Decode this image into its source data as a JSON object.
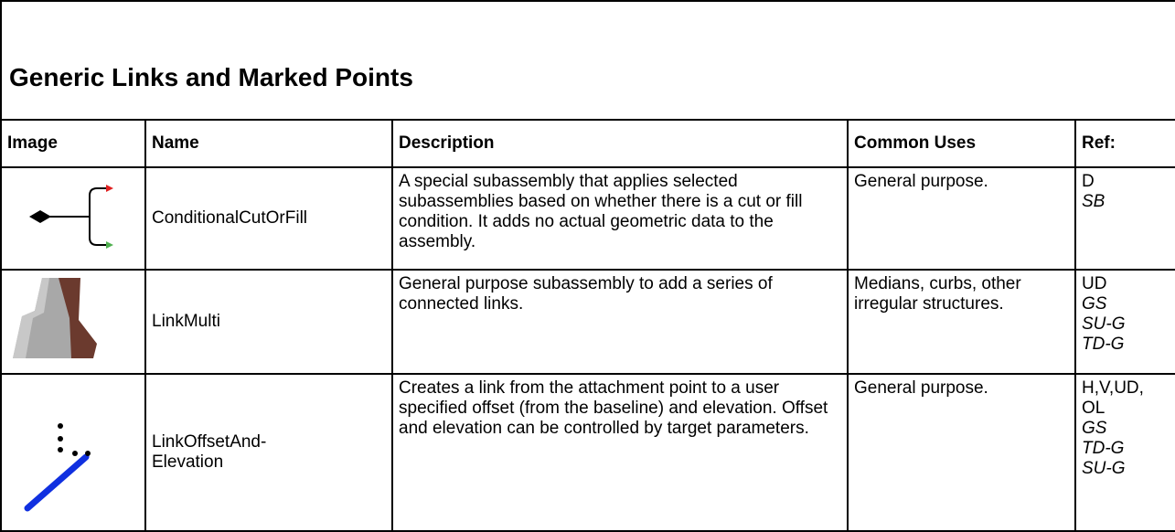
{
  "header": {
    "title": "Generic Links and Marked Points"
  },
  "table": {
    "columns": [
      "Image",
      "Name",
      "Description",
      "Common Uses",
      "Ref:"
    ],
    "rows": [
      {
        "name": "ConditionalCutOrFill",
        "description": "A special subassembly that applies selected subassemblies based on whether there is a cut or fill condition.  It adds no actual geometric data to the assembly.",
        "uses": "General purpose.",
        "ref_plain": [
          "D"
        ],
        "ref_italic": [
          "SB"
        ]
      },
      {
        "name": "LinkMulti",
        "description": "General purpose subassembly to add a series of connected links.",
        "uses": "Medians, curbs, other irregular structures.",
        "ref_plain": [
          "UD"
        ],
        "ref_italic": [
          "GS",
          "SU-G",
          "TD-G"
        ]
      },
      {
        "name": "LinkOffsetAnd-\nElevation",
        "description": "Creates a link from the attachment point to a user specified offset (from the baseline) and elevation.  Offset and elevation can be controlled by target parameters.",
        "uses": "General purpose.",
        "ref_plain": [
          "H,V,UD,",
          "OL"
        ],
        "ref_italic": [
          "GS",
          "TD-G",
          "SU-G"
        ]
      }
    ]
  }
}
